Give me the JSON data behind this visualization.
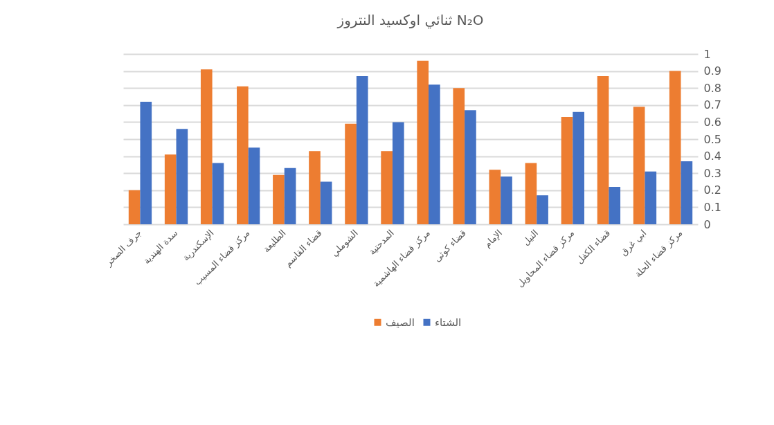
{
  "chart_data": {
    "type": "bar",
    "title": "ثنائي اوكسيد النتروز N₂O",
    "categories": [
      "جرف الصخر",
      "سدة الهندية",
      "الإسكندرية",
      "مركز قضاء المسيب",
      "الطليعة",
      "قضاء القاسم",
      "الشوملي",
      "المدحتية",
      "مركز قضاء الهاشمية",
      "قضاء كوثى",
      "الإمام",
      "النيل",
      "مركز قضاء المحاويل",
      "قضاء الكفل",
      "ابي غرق",
      "مركز قضاء الحلة"
    ],
    "series": [
      {
        "name": "الصيف",
        "color": "#ed7d31",
        "values": [
          0.2,
          0.41,
          0.91,
          0.81,
          0.29,
          0.43,
          0.59,
          0.43,
          0.96,
          0.8,
          0.32,
          0.36,
          0.63,
          0.87,
          0.69,
          0.9
        ]
      },
      {
        "name": "الشتاء",
        "color": "#4472c4",
        "values": [
          0.72,
          0.56,
          0.36,
          0.45,
          0.33,
          0.25,
          0.87,
          0.6,
          0.82,
          0.67,
          0.28,
          0.17,
          0.66,
          0.22,
          0.31,
          0.37
        ]
      }
    ],
    "ylim": [
      0,
      1
    ],
    "yticks": [
      0,
      0.1,
      0.2,
      0.3,
      0.4,
      0.5,
      0.6,
      0.7,
      0.8,
      0.9,
      1
    ],
    "grid": "y",
    "legend": "bottom"
  }
}
